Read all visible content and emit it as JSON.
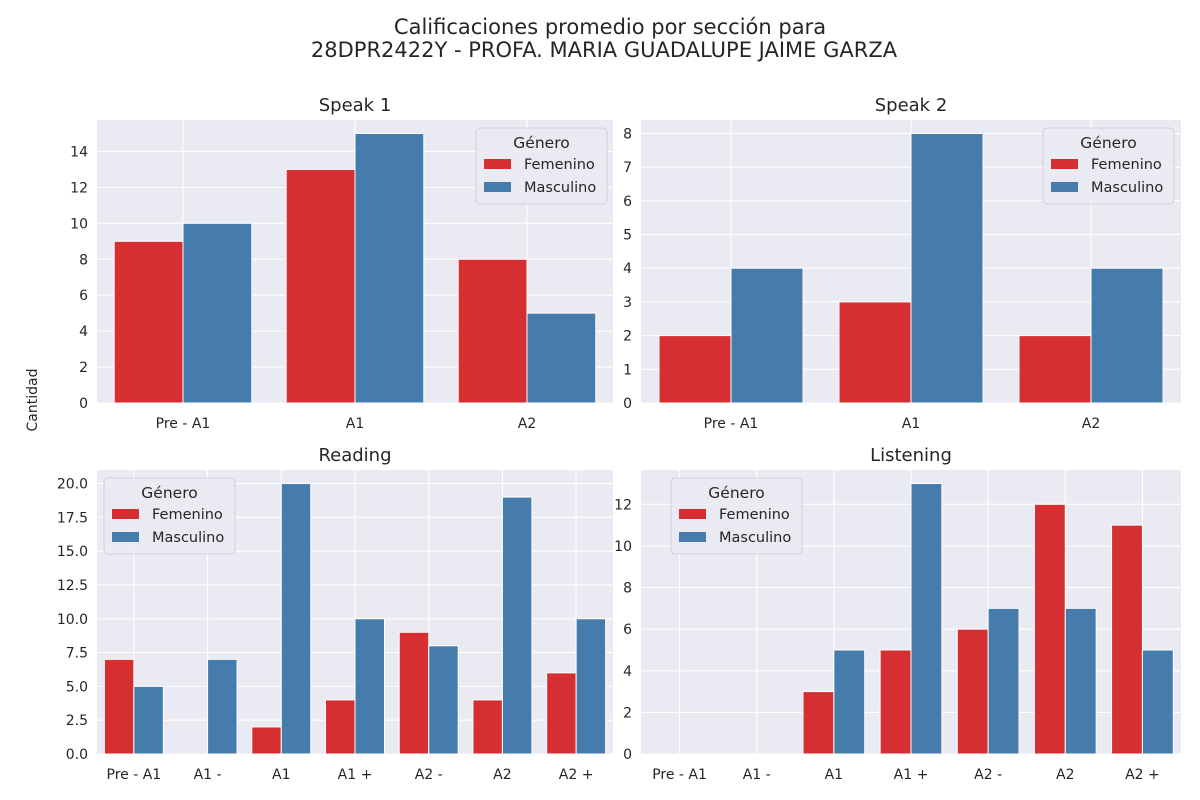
{
  "figure": {
    "title_line1": "Calificaciones promedio por sección para",
    "title_line2": "28DPR2422Y - PROFA. MARIA GUADALUPE JAIME GARZA",
    "ylabel": "Cantidad",
    "legend_title": "Género",
    "colors": {
      "Femenino": "#d62f32",
      "Masculino": "#457cab",
      "axes_bg": "#eaeaf2",
      "grid": "#ffffff"
    }
  },
  "chart_data": [
    {
      "type": "bar",
      "title": "Speak 1",
      "categories": [
        "Pre - A1",
        "A1",
        "A2"
      ],
      "series": [
        {
          "name": "Femenino",
          "values": [
            9,
            13,
            8
          ]
        },
        {
          "name": "Masculino",
          "values": [
            10,
            15,
            5
          ]
        }
      ],
      "ylim": [
        0,
        15.75
      ],
      "yticks": [
        0,
        2,
        4,
        6,
        8,
        10,
        12,
        14
      ],
      "ytick_labels": [
        "0",
        "2",
        "4",
        "6",
        "8",
        "10",
        "12",
        "14"
      ],
      "legend_position": "top-right",
      "grid": true
    },
    {
      "type": "bar",
      "title": "Speak 2",
      "categories": [
        "Pre - A1",
        "A1",
        "A2"
      ],
      "series": [
        {
          "name": "Femenino",
          "values": [
            2,
            3,
            2
          ]
        },
        {
          "name": "Masculino",
          "values": [
            4,
            8,
            4
          ]
        }
      ],
      "ylim": [
        0,
        8.4
      ],
      "yticks": [
        0,
        1,
        2,
        3,
        4,
        5,
        6,
        7,
        8
      ],
      "ytick_labels": [
        "0",
        "1",
        "2",
        "3",
        "4",
        "5",
        "6",
        "7",
        "8"
      ],
      "legend_position": "top-right",
      "grid": true
    },
    {
      "type": "bar",
      "title": "Reading",
      "categories": [
        "Pre - A1",
        "A1 -",
        "A1",
        "A1 +",
        "A2 -",
        "A2",
        "A2 +"
      ],
      "series": [
        {
          "name": "Femenino",
          "values": [
            7,
            0,
            2,
            4,
            9,
            4,
            6
          ]
        },
        {
          "name": "Masculino",
          "values": [
            5,
            7,
            20,
            10,
            8,
            19,
            10
          ]
        }
      ],
      "ylim": [
        0,
        21
      ],
      "yticks": [
        0,
        2.5,
        5,
        7.5,
        10,
        12.5,
        15,
        17.5,
        20
      ],
      "ytick_labels": [
        "0.0",
        "2.5",
        "5.0",
        "7.5",
        "10.0",
        "12.5",
        "15.0",
        "17.5",
        "20.0"
      ],
      "legend_position": "top-left",
      "grid": true
    },
    {
      "type": "bar",
      "title": "Listening",
      "categories": [
        "Pre - A1",
        "A1 -",
        "A1",
        "A1 +",
        "A2 -",
        "A2",
        "A2 +"
      ],
      "series": [
        {
          "name": "Femenino",
          "values": [
            0,
            0,
            3,
            5,
            6,
            12,
            11
          ]
        },
        {
          "name": "Masculino",
          "values": [
            0,
            0,
            5,
            13,
            7,
            7,
            5
          ]
        }
      ],
      "ylim": [
        0,
        13.65
      ],
      "yticks": [
        0,
        2,
        4,
        6,
        8,
        10,
        12
      ],
      "ytick_labels": [
        "0",
        "2",
        "4",
        "6",
        "8",
        "10",
        "12"
      ],
      "legend_position": "top-left",
      "grid": true
    }
  ]
}
